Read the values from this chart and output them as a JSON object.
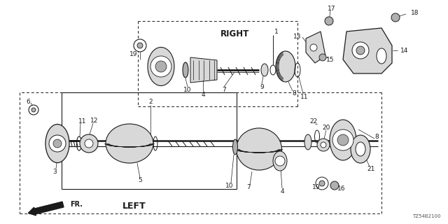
{
  "bg_color": "#ffffff",
  "line_color": "#1a1a1a",
  "gray_fill": "#b0b0b0",
  "light_gray": "#d8d8d8",
  "diagram_code": "TZ54B2100",
  "right_label": "RIGHT",
  "left_label": "LEFT",
  "fr_label": "FR."
}
